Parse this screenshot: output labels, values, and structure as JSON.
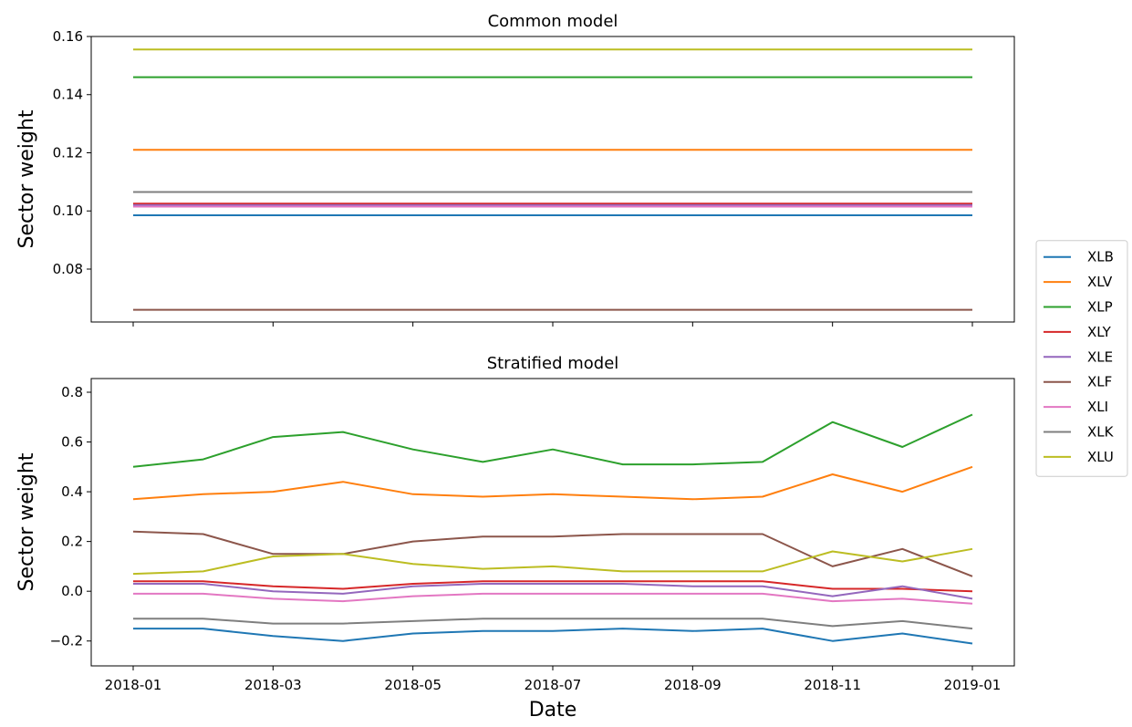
{
  "chart_data": [
    {
      "type": "line",
      "title": "Common model",
      "ylabel": "Sector weight",
      "x": [
        "2018-01",
        "2019-01"
      ],
      "ylim": [
        0.0618,
        0.16
      ],
      "yticks": [
        0.08,
        {
          "value": 0.1,
          "label": "0.10"
        },
        0.12,
        0.14,
        0.16
      ],
      "series": [
        {
          "color": "#1f77b4",
          "values": [
            0.0985,
            0.0985
          ]
        },
        {
          "color": "#ff7f0e",
          "values": [
            0.121,
            0.121
          ]
        },
        {
          "color": "#2ca02c",
          "values": [
            0.146,
            0.146
          ]
        },
        {
          "color": "#d62728",
          "values": [
            0.1025,
            0.1025
          ]
        },
        {
          "color": "#9467bd",
          "values": [
            0.102,
            0.102
          ]
        },
        {
          "color": "#8c564b",
          "values": [
            0.066,
            0.066
          ]
        },
        {
          "color": "#e377c2",
          "values": [
            0.1015,
            0.1015
          ]
        },
        {
          "color": "#7f7f7f",
          "values": [
            0.1065,
            0.1065
          ]
        },
        {
          "color": "#bcbd22",
          "values": [
            0.1555,
            0.1555
          ]
        }
      ]
    },
    {
      "type": "line",
      "title": "Stratified model",
      "ylabel": "Sector weight",
      "xlabel": "Date",
      "x": [
        "2018-01",
        "2018-02",
        "2018-03",
        "2018-04",
        "2018-05",
        "2018-06",
        "2018-07",
        "2018-08",
        "2018-09",
        "2018-10",
        "2018-11",
        "2018-12",
        "2019-01"
      ],
      "xlim": [
        "2018-01",
        "2019-01"
      ],
      "xticks": [
        "2018-01",
        "2018-03",
        "2018-05",
        "2018-07",
        "2018-09",
        "2018-11",
        "2019-01"
      ],
      "ylim": [
        -0.3,
        0.855
      ],
      "yticks": [
        {
          "value": -0.2,
          "label": "−0.2"
        },
        {
          "value": 0,
          "label": "0.0"
        },
        0.2,
        0.4,
        0.6,
        0.8
      ],
      "legend": "outside right",
      "series": [
        {
          "name": "XLB",
          "color": "#1f77b4",
          "values": [
            -0.15,
            -0.15,
            -0.18,
            -0.2,
            -0.17,
            -0.16,
            -0.16,
            -0.15,
            -0.16,
            -0.15,
            -0.2,
            -0.17,
            -0.21
          ]
        },
        {
          "name": "XLV",
          "color": "#ff7f0e",
          "values": [
            0.37,
            0.39,
            0.4,
            0.44,
            0.39,
            0.38,
            0.39,
            0.38,
            0.37,
            0.38,
            0.47,
            0.4,
            0.5
          ]
        },
        {
          "name": "XLP",
          "color": "#2ca02c",
          "values": [
            0.5,
            0.53,
            0.62,
            0.64,
            0.57,
            0.52,
            0.57,
            0.51,
            0.51,
            0.52,
            0.68,
            0.58,
            0.71
          ]
        },
        {
          "name": "XLY",
          "color": "#d62728",
          "values": [
            0.04,
            0.04,
            0.02,
            0.01,
            0.03,
            0.04,
            0.04,
            0.04,
            0.04,
            0.04,
            0.01,
            0.01,
            0.0
          ]
        },
        {
          "name": "XLE",
          "color": "#9467bd",
          "values": [
            0.03,
            0.03,
            0.0,
            -0.01,
            0.02,
            0.03,
            0.03,
            0.03,
            0.02,
            0.02,
            -0.02,
            0.02,
            -0.03
          ]
        },
        {
          "name": "XLF",
          "color": "#8c564b",
          "values": [
            0.24,
            0.23,
            0.15,
            0.15,
            0.2,
            0.22,
            0.22,
            0.23,
            0.23,
            0.23,
            0.1,
            0.17,
            0.06
          ]
        },
        {
          "name": "XLI",
          "color": "#e377c2",
          "values": [
            -0.01,
            -0.01,
            -0.03,
            -0.04,
            -0.02,
            -0.01,
            -0.01,
            -0.01,
            -0.01,
            -0.01,
            -0.04,
            -0.03,
            -0.05
          ]
        },
        {
          "name": "XLK",
          "color": "#7f7f7f",
          "values": [
            -0.11,
            -0.11,
            -0.13,
            -0.13,
            -0.12,
            -0.11,
            -0.11,
            -0.11,
            -0.11,
            -0.11,
            -0.14,
            -0.12,
            -0.15
          ]
        },
        {
          "name": "XLU",
          "color": "#bcbd22",
          "values": [
            0.07,
            0.08,
            0.14,
            0.15,
            0.11,
            0.09,
            0.1,
            0.08,
            0.08,
            0.08,
            0.16,
            0.12,
            0.17
          ]
        }
      ]
    }
  ]
}
